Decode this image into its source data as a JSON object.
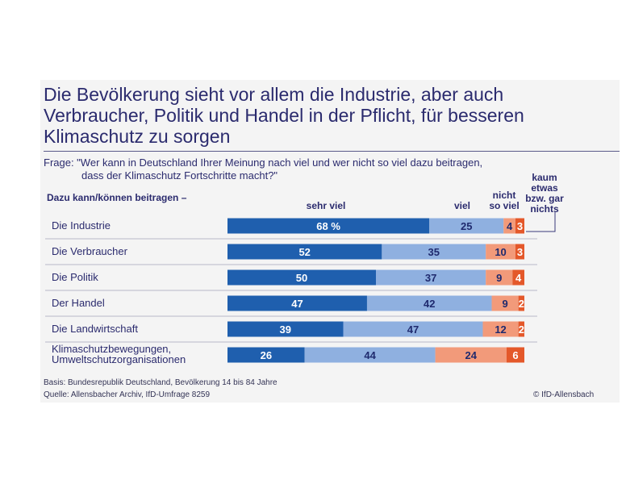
{
  "title": "Die Bevölkerung sieht vor allem die Industrie, aber auch Verbraucher, Politik und Handel in der Pflicht, für besseren Klimaschutz zu sorgen",
  "question_line1": "Frage: \"Wer kann in Deutschland Ihrer Meinung nach viel und wer nicht so viel dazu beitragen,",
  "question_line2": "dass der Klimaschutz Fortschritte macht?\"",
  "footer": {
    "basis": "Basis: Bundesrepublik Deutschland, Bevölkerung 14 bis 84 Jahre",
    "source": "Quelle: Allensbacher Archiv, IfD-Umfrage 8259",
    "copyright": "© IfD-Allensbach"
  },
  "colors": {
    "sehr_viel": "#1f5fae",
    "viel": "#8fb0e0",
    "nicht_so_viel": "#f29a7a",
    "kaum": "#e4582a",
    "dark_text": "#1f2a6e"
  },
  "chart_data": {
    "type": "bar",
    "orientation": "horizontal",
    "stacked": true,
    "title": "Die Bevölkerung sieht vor allem die Industrie, aber auch Verbraucher, Politik und Handel in der Pflicht, für besseren Klimaschutz zu sorgen",
    "row_header": "Dazu kann/können beitragen –",
    "categories": [
      [
        "Die Industrie"
      ],
      [
        "Die Verbraucher"
      ],
      [
        "Die Politik"
      ],
      [
        "Der Handel"
      ],
      [
        "Die Landwirtschaft"
      ],
      [
        "Klimaschutzbewegungen,",
        "Umweltschutzorganisationen"
      ]
    ],
    "series": [
      {
        "name": "sehr viel",
        "values": [
          68,
          52,
          50,
          47,
          39,
          26
        ]
      },
      {
        "name": "viel",
        "values": [
          25,
          35,
          37,
          42,
          47,
          44
        ]
      },
      {
        "name": "nicht so viel",
        "values": [
          4,
          10,
          9,
          9,
          12,
          24
        ]
      },
      {
        "name": "kaum etwas bzw. gar nichts",
        "values": [
          3,
          3,
          4,
          2,
          2,
          6
        ]
      }
    ],
    "series_headers": [
      [
        "sehr viel"
      ],
      [
        "viel"
      ],
      [
        "nicht",
        "so viel"
      ],
      [
        "kaum",
        "etwas",
        "bzw. gar",
        "nichts"
      ]
    ],
    "first_value_suffix": " %",
    "xlim": [
      0,
      100
    ],
    "unit": "%"
  }
}
